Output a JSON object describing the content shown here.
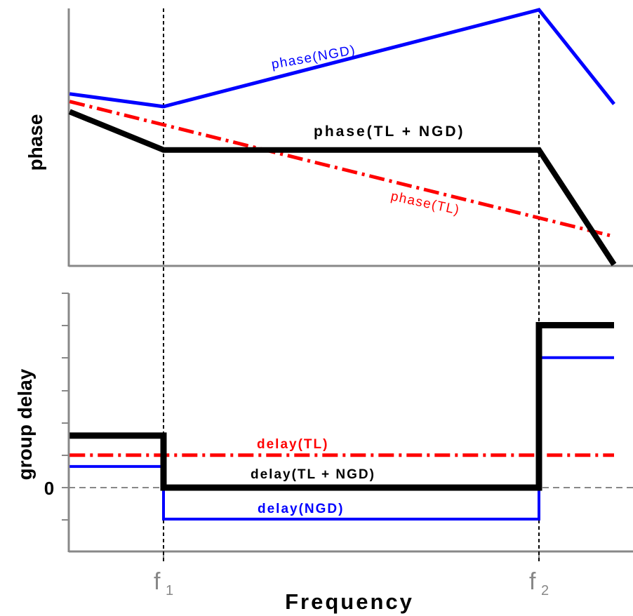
{
  "chart_data": [
    {
      "type": "line",
      "panel": "top",
      "ylabel": "phase",
      "x_markers": [
        "f1",
        "f2"
      ],
      "x_domain": [
        -0.25,
        1.2
      ],
      "ylim": [
        0,
        1
      ],
      "grid": false,
      "series": [
        {
          "name": "phase(NGD)",
          "color": "#0000ff",
          "style": "solid",
          "x": [
            -0.25,
            0,
            1,
            1.2
          ],
          "y": [
            0.67,
            0.62,
            1.0,
            0.63
          ]
        },
        {
          "name": "phase(TL + NGD)",
          "color": "#000000",
          "style": "solid-thick",
          "x": [
            -0.25,
            0,
            1,
            1.2
          ],
          "y": [
            0.6,
            0.45,
            0.45,
            0.0
          ]
        },
        {
          "name": "phase(TL)",
          "color": "#ff0000",
          "style": "dash-dot",
          "x": [
            -0.25,
            1.2
          ],
          "y": [
            0.64,
            0.11
          ]
        }
      ]
    },
    {
      "type": "line",
      "panel": "bottom",
      "ylabel": "group delay",
      "yticks": [
        0
      ],
      "x_markers": [
        "f1",
        "f2"
      ],
      "x_domain": [
        -0.25,
        1.2
      ],
      "ylim": [
        -2,
        6
      ],
      "grid": false,
      "series": [
        {
          "name": "delay(TL + NGD)",
          "color": "#000000",
          "style": "solid-thick",
          "x": [
            -0.25,
            0,
            0,
            1,
            1,
            1.2
          ],
          "y": [
            1.6,
            1.6,
            0,
            0,
            5.0,
            5.0
          ]
        },
        {
          "name": "delay(TL)",
          "color": "#ff0000",
          "style": "dash-dot",
          "x": [
            -0.25,
            1.2
          ],
          "y": [
            1.0,
            1.0
          ]
        },
        {
          "name": "delay(NGD)",
          "color": "#0000ff",
          "style": "solid",
          "x": [
            -0.25,
            0,
            0,
            1,
            1,
            1.2
          ],
          "y": [
            0.65,
            0.65,
            -0.97,
            -0.97,
            4.0,
            4.0
          ]
        }
      ]
    }
  ],
  "labels": {
    "phase_ngd": "phase(NGD)",
    "phase_tl_ngd": "phase(TL + NGD)",
    "phase_tl": "phase(TL)",
    "delay_tl": "delay(TL)",
    "delay_tl_ngd": "delay(TL + NGD)",
    "delay_ngd": "delay(NGD)",
    "ylabel_top": "phase",
    "ylabel_bottom": "group delay",
    "zero_tick": "0",
    "xlabel": "Frequency",
    "f1_base": "f",
    "f1_sub": "1",
    "f2_base": "f",
    "f2_sub": "2"
  }
}
